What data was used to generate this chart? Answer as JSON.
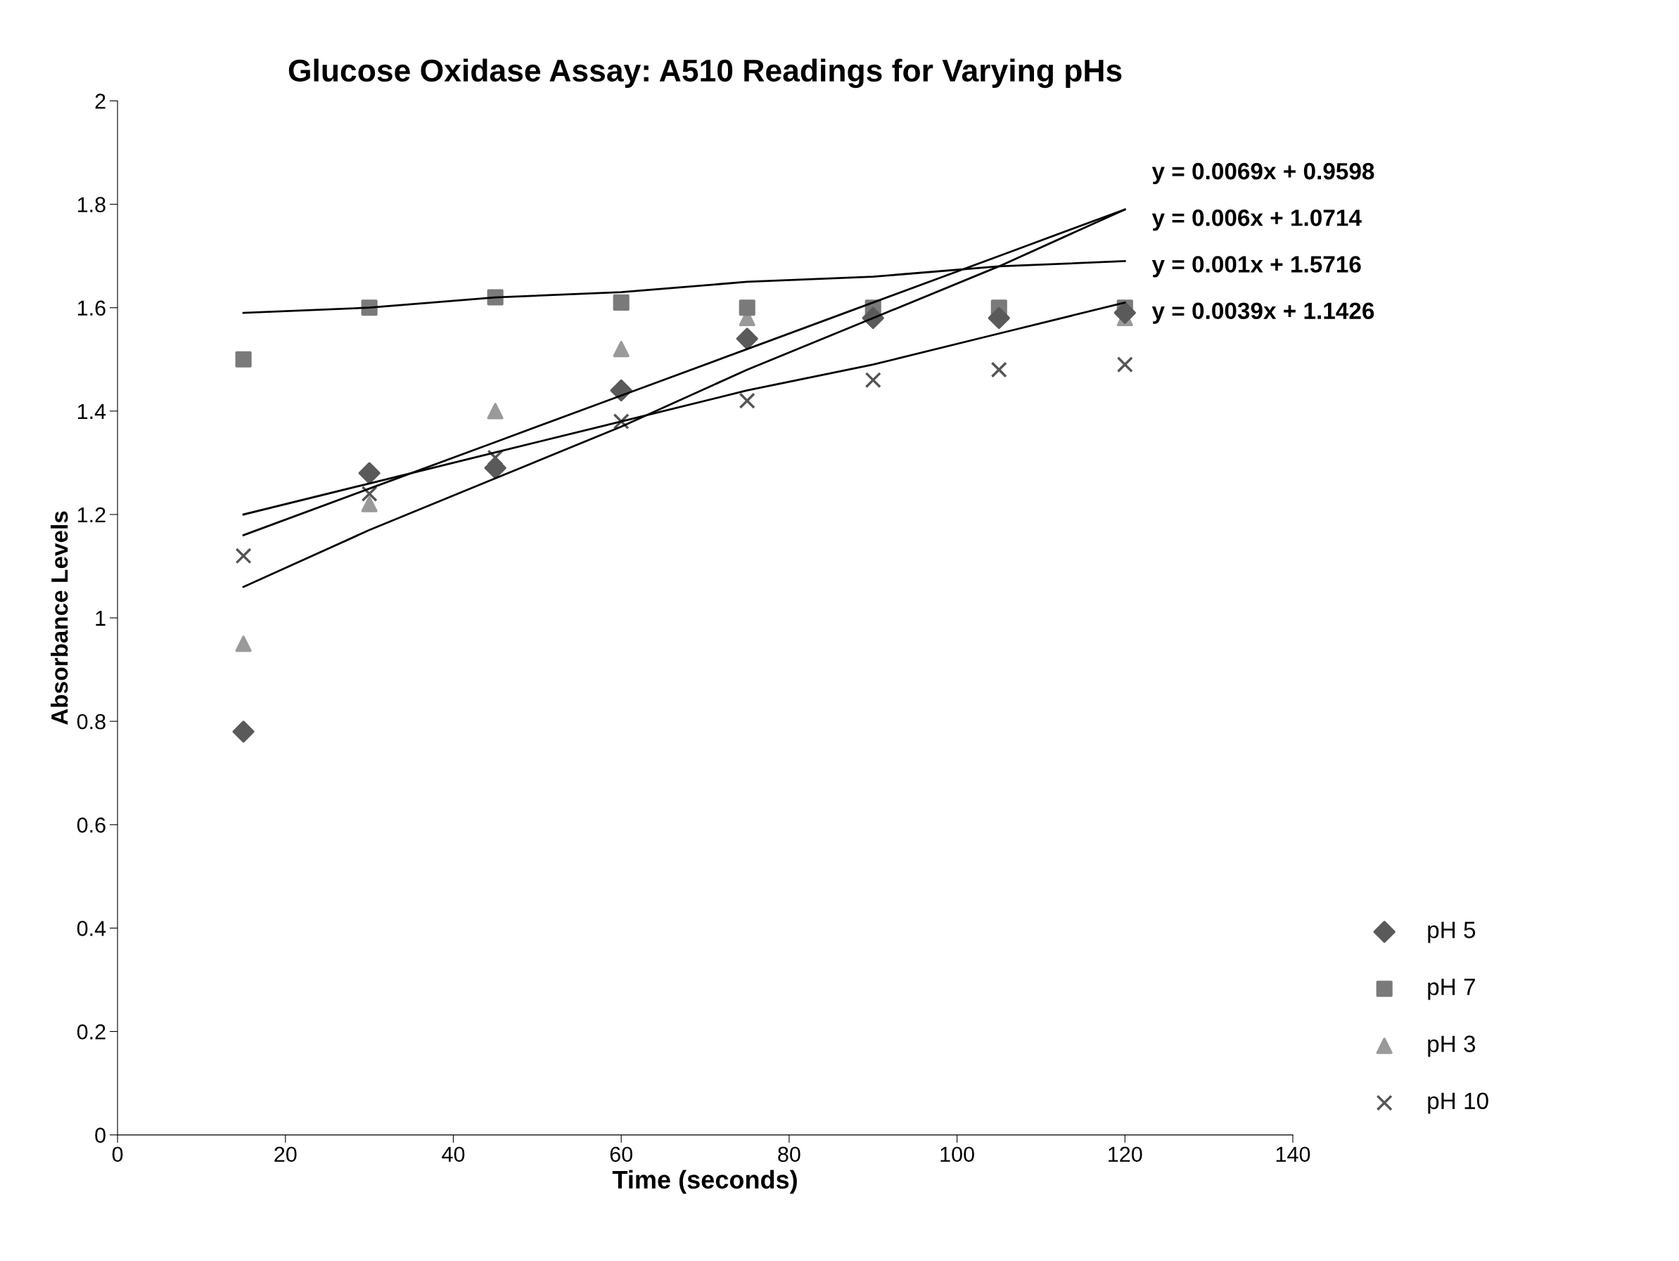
{
  "chart_data": {
    "type": "scatter",
    "title": "Glucose Oxidase Assay: A510 Readings for Varying pHs",
    "xlabel": "Time (seconds)",
    "ylabel": "Absorbance Levels",
    "x": [
      15,
      30,
      45,
      60,
      75,
      90,
      105,
      120
    ],
    "series": [
      {
        "name": "pH 5",
        "color": "#5a5a5a",
        "marker": "diamond",
        "values": [
          0.78,
          1.28,
          1.29,
          1.44,
          1.54,
          1.58,
          1.58,
          1.59
        ]
      },
      {
        "name": "pH 7",
        "color": "#7a7a7a",
        "marker": "square",
        "values": [
          1.5,
          1.6,
          1.62,
          1.61,
          1.6,
          1.6,
          1.6,
          1.6
        ]
      },
      {
        "name": "pH 3",
        "color": "#9a9a9a",
        "marker": "triangle",
        "values": [
          0.95,
          1.22,
          1.4,
          1.52,
          1.58,
          null,
          null,
          1.58
        ]
      },
      {
        "name": "pH 10",
        "color": "#555555",
        "marker": "cross",
        "values": [
          1.12,
          1.24,
          1.31,
          1.38,
          1.42,
          1.46,
          1.48,
          1.49
        ]
      },
      {
        "type": "line",
        "color": "#000000",
        "values": [
          1.06,
          1.17,
          1.27,
          1.37,
          1.48,
          1.58,
          1.68,
          1.79
        ]
      },
      {
        "type": "line",
        "color": "#000000",
        "values": [
          1.16,
          1.25,
          1.34,
          1.43,
          1.52,
          1.61,
          1.7,
          1.79
        ]
      },
      {
        "type": "line",
        "color": "#000000",
        "values": [
          1.59,
          1.6,
          1.62,
          1.63,
          1.65,
          1.66,
          1.68,
          1.69
        ]
      },
      {
        "type": "line",
        "color": "#000000",
        "values": [
          1.2,
          1.26,
          1.32,
          1.38,
          1.44,
          1.49,
          1.55,
          1.61
        ]
      }
    ],
    "annotations": [
      "y = 0.0069x + 0.9598",
      "y = 0.006x + 1.0714",
      "y = 0.001x + 1.5716",
      "y = 0.0039x + 1.1426"
    ],
    "xlim": [
      0,
      140
    ],
    "xticks": [
      0,
      20,
      40,
      60,
      80,
      100,
      120,
      140
    ],
    "ylim": [
      0,
      2
    ],
    "yticks": [
      0,
      0.2,
      0.4,
      0.6,
      0.8,
      1,
      1.2,
      1.4,
      1.6,
      1.8,
      2
    ],
    "grid": false,
    "legend": "bottom right"
  }
}
